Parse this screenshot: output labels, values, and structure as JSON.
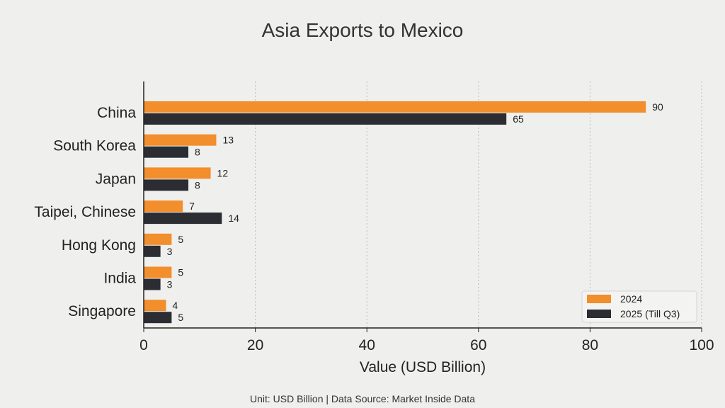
{
  "chart_data": {
    "type": "bar",
    "orientation": "horizontal",
    "title": "Asia Exports to Mexico",
    "xlabel": "Value (USD Billion)",
    "ylabel": "",
    "xlim": [
      0,
      100
    ],
    "xticks": [
      "0",
      "20",
      "40",
      "60",
      "80",
      "100"
    ],
    "grid": "vertical dotted",
    "legend_position": "bottom-right",
    "categories": [
      "China",
      "South Korea",
      "Japan",
      "Taipei, Chinese",
      "Hong Kong",
      "India",
      "Singapore"
    ],
    "series": [
      {
        "name": "2024",
        "color": "#f28e2b",
        "values": [
          90,
          13,
          12,
          7,
          5,
          5,
          4
        ]
      },
      {
        "name": "2025 (Till Q3)",
        "color": "#2b2d33",
        "values": [
          65,
          8,
          8,
          14,
          3,
          3,
          5
        ]
      }
    ],
    "footnote": "Unit: USD Billion | Data Source: Market Inside Data"
  }
}
